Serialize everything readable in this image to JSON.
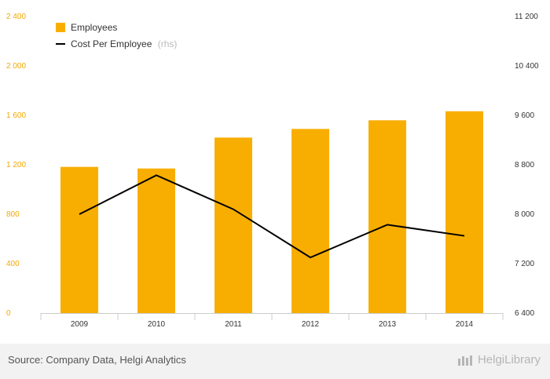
{
  "chart_data": {
    "type": "bar",
    "categories": [
      "2009",
      "2010",
      "2011",
      "2012",
      "2013",
      "2014"
    ],
    "series": [
      {
        "name": "Employees",
        "type": "bar",
        "axis": "left",
        "values": [
          1183,
          1170,
          1420,
          1490,
          1560,
          1633
        ]
      },
      {
        "name": "Cost Per Employee",
        "name_note": "(rhs)",
        "type": "line",
        "axis": "right",
        "values": [
          8000,
          8630,
          8080,
          7300,
          7830,
          7650
        ]
      }
    ],
    "y_left": {
      "ylim": [
        0,
        2400
      ],
      "ticks": [
        0,
        400,
        800,
        1200,
        1600,
        2000,
        2400
      ]
    },
    "y_right": {
      "ylim": [
        6400,
        11200
      ],
      "ticks": [
        6400,
        7200,
        8000,
        8800,
        9600,
        10400,
        11200
      ]
    },
    "legend_position": "top-left",
    "grid": false,
    "colors": {
      "bar": "#f8ae00",
      "line": "#000000",
      "left_axis": "#f5a800"
    }
  },
  "footer": {
    "source": "Source: Company Data, Helgi Analytics",
    "brand": "HelgiLibrary"
  }
}
